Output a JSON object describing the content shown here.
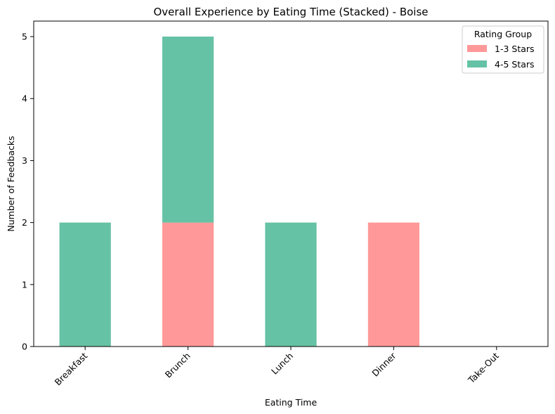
{
  "chart_data": {
    "type": "bar",
    "stacked": true,
    "title": "Overall Experience by Eating Time (Stacked) - Boise",
    "xlabel": "Eating Time",
    "ylabel": "Number of Feedbacks",
    "categories": [
      "Breakfast",
      "Brunch",
      "Lunch",
      "Dinner",
      "Take-Out"
    ],
    "series": [
      {
        "name": "1-3 Stars",
        "color": "#ff9999",
        "values": [
          0,
          2,
          0,
          2,
          0
        ]
      },
      {
        "name": "4-5 Stars",
        "color": "#66c2a5",
        "values": [
          2,
          3,
          2,
          0,
          0
        ]
      }
    ],
    "ylim": [
      0,
      5.25
    ],
    "yticks": [
      "0",
      "1",
      "2",
      "3",
      "4",
      "5"
    ],
    "xtick_rotation": 45,
    "grid": false,
    "legend": {
      "title": "Rating Group",
      "placement": "top-right"
    }
  }
}
